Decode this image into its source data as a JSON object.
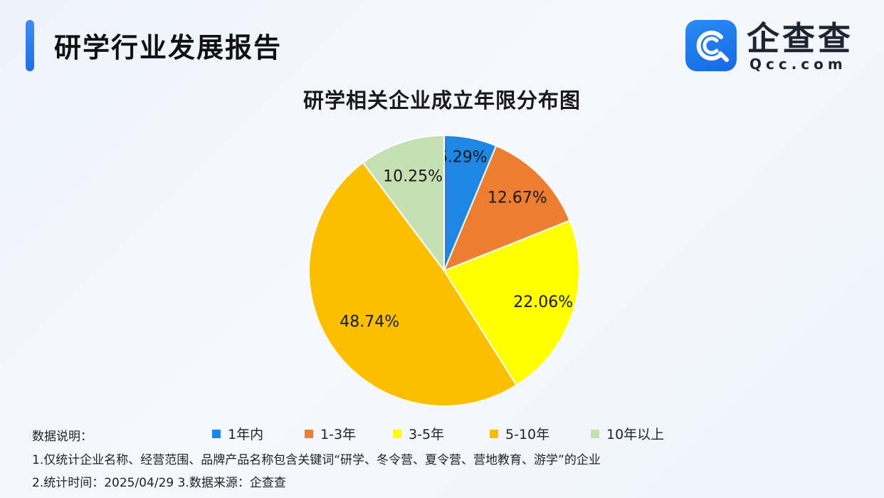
{
  "header": {
    "report_title": "研学行业发展报告",
    "brand_name": "企查查",
    "brand_domain": "Qcc.com"
  },
  "chart_data": {
    "type": "pie",
    "title": "研学相关企业成立年限分布图",
    "legend_position": "bottom",
    "slices": [
      {
        "label": "1年内",
        "value": 6.29,
        "display": "6.29%",
        "color": "#1e87e5"
      },
      {
        "label": "1-3年",
        "value": 12.67,
        "display": "12.67%",
        "color": "#ec7d31"
      },
      {
        "label": "3-5年",
        "value": 22.06,
        "display": "22.06%",
        "color": "#ffff00"
      },
      {
        "label": "5-10年",
        "value": 48.74,
        "display": "48.74%",
        "color": "#fbbf00"
      },
      {
        "label": "10年以上",
        "value": 10.25,
        "display": "10.25%",
        "color": "#c6e0b4"
      }
    ]
  },
  "notes": {
    "heading": "数据说明：",
    "line1": "1.仅统计企业名称、经营范围、品牌产品名称包含关键词“研学、冬令营、夏令营、营地教育、游学”的企业",
    "line2": "2.统计时间：2025/04/29    3.数据来源：企查查"
  }
}
